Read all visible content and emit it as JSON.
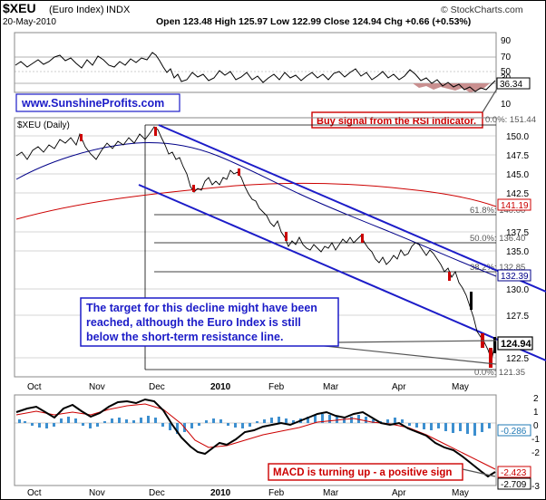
{
  "header": {
    "symbol": "$XEU",
    "name": "(Euro Index)",
    "exchange": "INDX",
    "date": "20-May-2010",
    "ohlc": "Open 123.48  High 125.97  Low 122.99  Close 124.94  Chg +0.66 (+0.53%)",
    "copyright": "© StockCharts.com"
  },
  "watermark": "www.SunshineProfits.com",
  "rsi": {
    "ticks": [
      "90",
      "70",
      "50",
      "30",
      "10"
    ],
    "last_value": "36.34",
    "last_value_num": 36.34,
    "annotation": "Buy signal from the RSI indicator."
  },
  "price": {
    "label": "$XEU (Daily)",
    "y_ticks": [
      "150.0",
      "147.5",
      "145.0",
      "142.5",
      "137.5",
      "135.0",
      "130.0",
      "127.5",
      "122.5"
    ],
    "ma_labels": [
      {
        "text": "141.19",
        "value": 141.19,
        "color": "#cc0000"
      },
      {
        "text": "132.39",
        "value": 132.39,
        "color": "#000088"
      }
    ],
    "last_price": "124.94",
    "last_price_num": 124.94,
    "fib_levels": [
      {
        "text": "0.0%: 151.44",
        "value": 151.44
      },
      {
        "text": "61.8%: 140.00",
        "value": 140.0
      },
      {
        "text": "50.0%: 136.40",
        "value": 136.4
      },
      {
        "text": "38.2%: 132.85",
        "value": 132.85
      },
      {
        "text": "0.0%: 121.35",
        "value": 121.35
      }
    ],
    "annotation_lines": [
      "The target for this decline might have been",
      "reached, although the Euro Index is still",
      "below the short-term resistance line."
    ]
  },
  "macd": {
    "value_labels": [
      {
        "text": "-0.286",
        "value": -0.286,
        "color": "#1f78b4"
      },
      {
        "text": "-2.423",
        "value": -2.423,
        "color": "#cc0000"
      },
      {
        "text": "-2.709",
        "value": -2.709,
        "color": "#000000"
      }
    ],
    "y_ticks": [
      "2",
      "1",
      "0",
      "-1",
      "-2",
      "-3"
    ],
    "annotation": "MACD is turning up - a positive sign"
  },
  "x_axis": [
    "Oct",
    "Nov",
    "Dec",
    "2010",
    "Feb",
    "Mar",
    "Apr",
    "May"
  ],
  "chart_data": [
    {
      "type": "line",
      "title": "RSI",
      "ylim": [
        0,
        100
      ],
      "reference_lines": [
        70,
        50,
        30
      ],
      "x": [
        "Oct",
        "Nov",
        "Dec",
        "2010",
        "Feb",
        "Mar",
        "Apr",
        "May"
      ],
      "values": [
        55,
        62,
        58,
        38,
        42,
        47,
        52,
        36
      ]
    },
    {
      "type": "line",
      "title": "$XEU (Daily)",
      "ylim": [
        120,
        152.5
      ],
      "x": [
        "Oct",
        "Nov",
        "Dec",
        "2010",
        "Feb",
        "Mar",
        "Apr",
        "May"
      ],
      "series": [
        {
          "name": "$XEU",
          "values": [
            147.5,
            148.2,
            150.4,
            145.0,
            137.5,
            135.5,
            134.5,
            124.94
          ]
        }
      ]
    },
    {
      "type": "line",
      "title": "MACD",
      "ylim": [
        -3,
        2.5
      ],
      "x": [
        "Oct",
        "Nov",
        "Dec",
        "2010",
        "Feb",
        "Mar",
        "Apr",
        "May"
      ],
      "series": [
        {
          "name": "MACD",
          "values": [
            0.8,
            0.7,
            1.0,
            -1.6,
            -1.2,
            -0.5,
            0.1,
            -2.709
          ]
        },
        {
          "name": "Signal",
          "values": [
            0.6,
            0.8,
            0.9,
            -1.1,
            -1.5,
            -0.8,
            0.0,
            -2.423
          ]
        },
        {
          "name": "Histogram",
          "values": [
            0.2,
            -0.1,
            0.1,
            -0.5,
            0.3,
            0.3,
            0.1,
            -0.286
          ]
        }
      ]
    }
  ]
}
